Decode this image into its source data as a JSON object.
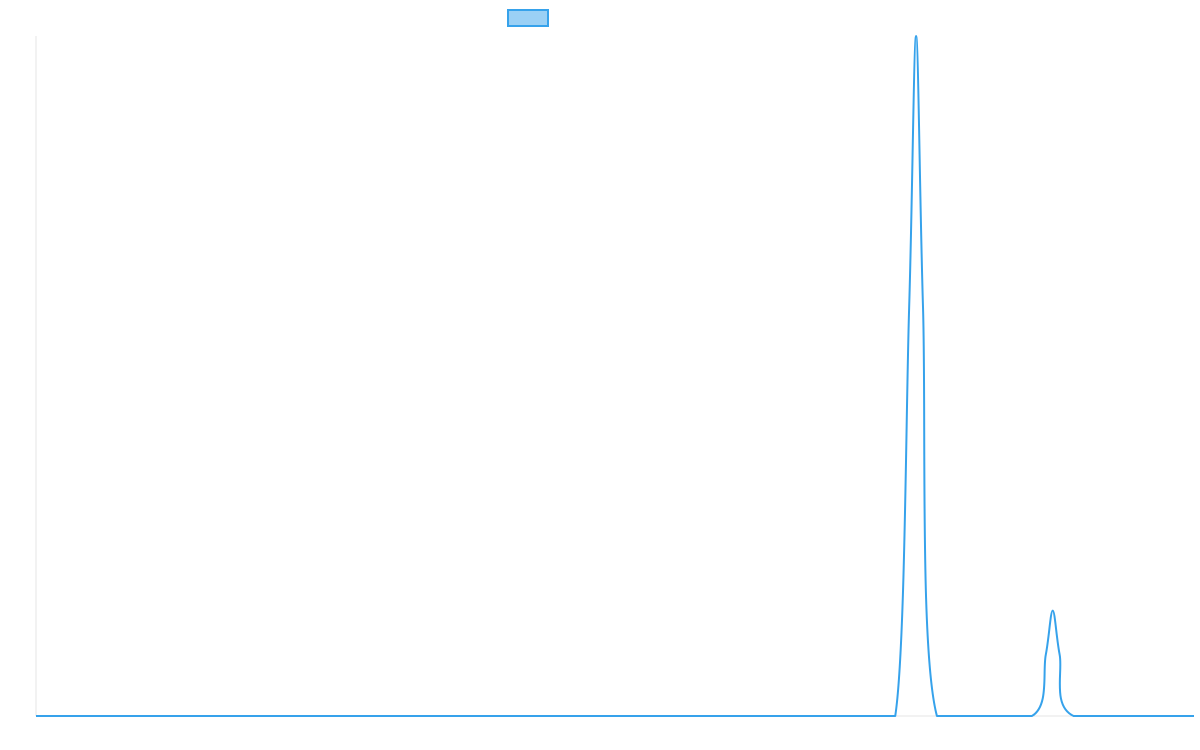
{
  "chart_data": {
    "type": "line",
    "title": "",
    "xlabel": "",
    "ylabel": "",
    "x": [
      0,
      100,
      200,
      300,
      400,
      500,
      600,
      700,
      742,
      754,
      760,
      766,
      778,
      860,
      872,
      878,
      884,
      896,
      1000
    ],
    "series": [
      {
        "values": [
          0,
          0,
          0,
          0,
          0,
          0,
          0,
          0,
          0,
          0.6,
          1.0,
          0.6,
          0,
          0,
          0.09,
          0.155,
          0.09,
          0,
          0
        ],
        "color": "#36a2eb",
        "fill": "#9ad0f5"
      }
    ],
    "xlim": [
      0,
      1000
    ],
    "ylim": [
      0,
      1
    ],
    "grid": false,
    "legend": {
      "position": "top-center",
      "entries": [
        ""
      ]
    }
  }
}
